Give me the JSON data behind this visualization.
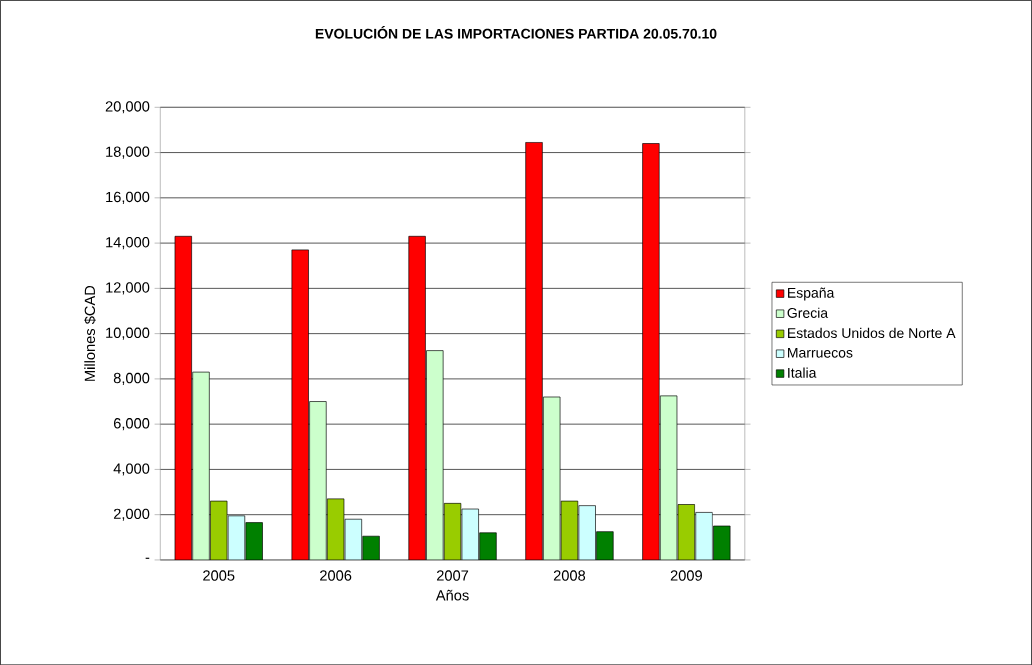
{
  "chart_data": {
    "type": "bar",
    "title": "EVOLUCIÓN DE LAS IMPORTACIONES PARTIDA 20.05.70.10",
    "xlabel": "Años",
    "ylabel": "Millones $CAD",
    "categories": [
      "2005",
      "2006",
      "2007",
      "2008",
      "2009"
    ],
    "series": [
      {
        "name": "España",
        "color": "#ff0000",
        "values": [
          14300,
          13700,
          14300,
          18450,
          18400
        ]
      },
      {
        "name": "Grecia",
        "color": "#ccffcc",
        "values": [
          8300,
          7000,
          9250,
          7200,
          7250
        ]
      },
      {
        "name": "Estados Unidos de Norte A",
        "color": "#99cc00",
        "values": [
          2600,
          2700,
          2500,
          2600,
          2450
        ]
      },
      {
        "name": "Marruecos",
        "color": "#ccffff",
        "values": [
          1950,
          1800,
          2250,
          2400,
          2100
        ]
      },
      {
        "name": "Italia",
        "color": "#008000",
        "values": [
          1650,
          1050,
          1200,
          1250,
          1500
        ]
      }
    ],
    "ylim": [
      0,
      20000
    ],
    "yticks": [
      {
        "value": 0,
        "label": "-"
      },
      {
        "value": 2000,
        "label": "2,000"
      },
      {
        "value": 4000,
        "label": "4,000"
      },
      {
        "value": 6000,
        "label": "6,000"
      },
      {
        "value": 8000,
        "label": "8,000"
      },
      {
        "value": 10000,
        "label": "10,000"
      },
      {
        "value": 12000,
        "label": "12,000"
      },
      {
        "value": 14000,
        "label": "14,000"
      },
      {
        "value": 16000,
        "label": "16,000"
      },
      {
        "value": 18000,
        "label": "18,000"
      },
      {
        "value": 20000,
        "label": "20,000"
      }
    ],
    "grid": "y",
    "legend": "right"
  }
}
